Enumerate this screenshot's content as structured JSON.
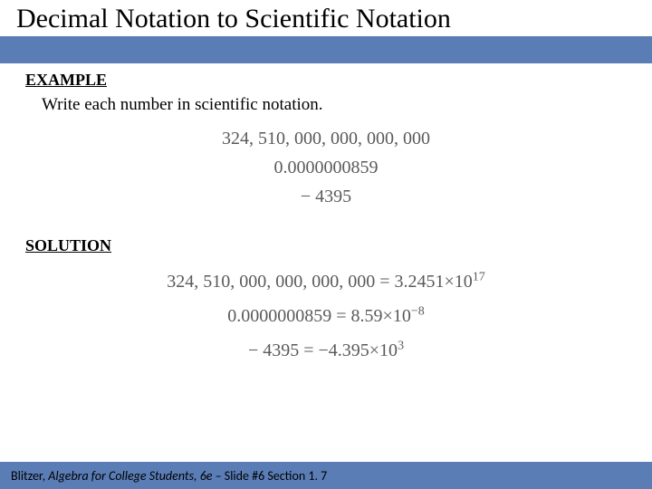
{
  "title": "Decimal Notation to Scientific Notation",
  "example_label": "EXAMPLE",
  "instruction": "Write each number in scientific notation.",
  "problems": {
    "p1": "324, 510, 000, 000, 000, 000",
    "p2": "0.0000000859",
    "p3": "− 4395"
  },
  "solution_label": "SOLUTION",
  "solutions": {
    "s1_left": "324, 510, 000, 000, 000, 000 = 3.2451×10",
    "s1_exp": "17",
    "s2_left": "0.0000000859 = 8.59×10",
    "s2_exp": "−8",
    "s3_left": "− 4395 = −4.395×10",
    "s3_exp": "3"
  },
  "footer": {
    "author": "Blitzer, ",
    "book": "Algebra for College Students, ",
    "edition": "6e",
    "rest": " – Slide #6 Section 1. 7"
  },
  "colors": {
    "bar": "#5a7db6",
    "math_text": "#5a5a5a",
    "text": "#000000",
    "bg": "#ffffff"
  }
}
